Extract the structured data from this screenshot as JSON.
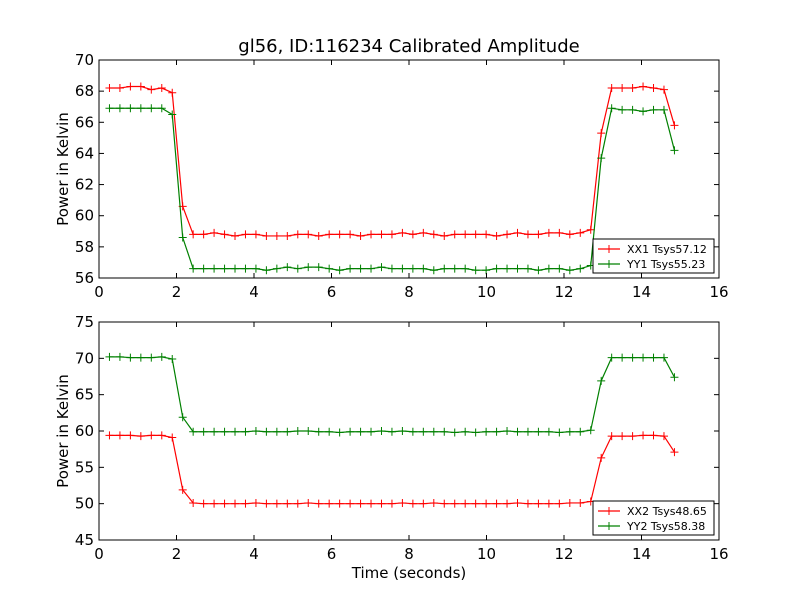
{
  "chart_data": [
    {
      "type": "line",
      "title": "gl56, ID:116234 Calibrated Amplitude",
      "xlabel": "",
      "ylabel": "Power in Kelvin",
      "xlim": [
        0,
        16
      ],
      "ylim": [
        56,
        70
      ],
      "xticks": [
        0,
        2,
        4,
        6,
        8,
        10,
        12,
        14,
        16
      ],
      "yticks": [
        56,
        58,
        60,
        62,
        64,
        66,
        68,
        70
      ],
      "grid": false,
      "legend_position": "lower-right",
      "series": [
        {
          "name": "XX1 Tsys57.12",
          "color": "#ff0000",
          "x": [
            0.27,
            0.54,
            0.81,
            1.08,
            1.35,
            1.62,
            1.89,
            2.16,
            2.43,
            2.7,
            2.97,
            3.24,
            3.51,
            3.78,
            4.05,
            4.32,
            4.59,
            4.86,
            5.13,
            5.4,
            5.67,
            5.94,
            6.21,
            6.48,
            6.75,
            7.02,
            7.29,
            7.56,
            7.83,
            8.1,
            8.37,
            8.64,
            8.91,
            9.18,
            9.45,
            9.72,
            9.99,
            10.26,
            10.53,
            10.8,
            11.07,
            11.34,
            11.61,
            11.88,
            12.15,
            12.42,
            12.69,
            12.96,
            13.23,
            13.5,
            13.77,
            14.04,
            14.31,
            14.58,
            14.85
          ],
          "y": [
            68.2,
            68.2,
            68.3,
            68.3,
            68.1,
            68.2,
            67.9,
            60.6,
            58.8,
            58.8,
            58.9,
            58.8,
            58.7,
            58.8,
            58.8,
            58.7,
            58.7,
            58.7,
            58.8,
            58.8,
            58.7,
            58.8,
            58.8,
            58.8,
            58.7,
            58.8,
            58.8,
            58.8,
            58.9,
            58.8,
            58.9,
            58.8,
            58.7,
            58.8,
            58.8,
            58.8,
            58.8,
            58.7,
            58.8,
            58.9,
            58.8,
            58.8,
            58.9,
            58.9,
            58.8,
            58.9,
            59.1,
            65.3,
            68.2,
            68.2,
            68.2,
            68.3,
            68.2,
            68.1,
            65.8
          ]
        },
        {
          "name": "YY1 Tsys55.23",
          "color": "#008000",
          "x": [
            0.27,
            0.54,
            0.81,
            1.08,
            1.35,
            1.62,
            1.89,
            2.16,
            2.43,
            2.7,
            2.97,
            3.24,
            3.51,
            3.78,
            4.05,
            4.32,
            4.59,
            4.86,
            5.13,
            5.4,
            5.67,
            5.94,
            6.21,
            6.48,
            6.75,
            7.02,
            7.29,
            7.56,
            7.83,
            8.1,
            8.37,
            8.64,
            8.91,
            9.18,
            9.45,
            9.72,
            9.99,
            10.26,
            10.53,
            10.8,
            11.07,
            11.34,
            11.61,
            11.88,
            12.15,
            12.42,
            12.69,
            12.96,
            13.23,
            13.5,
            13.77,
            14.04,
            14.31,
            14.58,
            14.85
          ],
          "y": [
            66.9,
            66.9,
            66.9,
            66.9,
            66.9,
            66.9,
            66.5,
            58.6,
            56.6,
            56.6,
            56.6,
            56.6,
            56.6,
            56.6,
            56.6,
            56.5,
            56.6,
            56.7,
            56.6,
            56.7,
            56.7,
            56.6,
            56.5,
            56.6,
            56.6,
            56.6,
            56.7,
            56.6,
            56.6,
            56.6,
            56.6,
            56.5,
            56.6,
            56.6,
            56.6,
            56.5,
            56.5,
            56.6,
            56.6,
            56.6,
            56.6,
            56.5,
            56.6,
            56.6,
            56.5,
            56.6,
            56.8,
            63.7,
            66.9,
            66.8,
            66.8,
            66.7,
            66.8,
            66.8,
            64.2
          ]
        }
      ]
    },
    {
      "type": "line",
      "title": "",
      "xlabel": "Time (seconds)",
      "ylabel": "Power in Kelvin",
      "xlim": [
        0,
        16
      ],
      "ylim": [
        45,
        75
      ],
      "xticks": [
        0,
        2,
        4,
        6,
        8,
        10,
        12,
        14,
        16
      ],
      "yticks": [
        45,
        50,
        55,
        60,
        65,
        70,
        75
      ],
      "grid": false,
      "legend_position": "lower-right",
      "series": [
        {
          "name": "XX2 Tsys48.65",
          "color": "#ff0000",
          "x": [
            0.27,
            0.54,
            0.81,
            1.08,
            1.35,
            1.62,
            1.89,
            2.16,
            2.43,
            2.7,
            2.97,
            3.24,
            3.51,
            3.78,
            4.05,
            4.32,
            4.59,
            4.86,
            5.13,
            5.4,
            5.67,
            5.94,
            6.21,
            6.48,
            6.75,
            7.02,
            7.29,
            7.56,
            7.83,
            8.1,
            8.37,
            8.64,
            8.91,
            9.18,
            9.45,
            9.72,
            9.99,
            10.26,
            10.53,
            10.8,
            11.07,
            11.34,
            11.61,
            11.88,
            12.15,
            12.42,
            12.69,
            12.96,
            13.23,
            13.5,
            13.77,
            14.04,
            14.31,
            14.58,
            14.85
          ],
          "y": [
            59.4,
            59.4,
            59.4,
            59.3,
            59.4,
            59.4,
            59.1,
            51.9,
            50.1,
            50.0,
            50.0,
            50.0,
            50.0,
            50.0,
            50.1,
            50.0,
            50.0,
            50.0,
            50.0,
            50.1,
            50.0,
            50.0,
            50.0,
            50.0,
            50.0,
            50.0,
            50.0,
            50.0,
            50.1,
            50.0,
            50.0,
            50.1,
            50.0,
            50.0,
            50.0,
            50.0,
            50.0,
            50.0,
            50.0,
            50.1,
            50.0,
            50.0,
            50.0,
            50.0,
            50.1,
            50.1,
            50.3,
            56.3,
            59.3,
            59.3,
            59.3,
            59.4,
            59.4,
            59.3,
            57.1
          ]
        },
        {
          "name": "YY2 Tsys58.38",
          "color": "#008000",
          "x": [
            0.27,
            0.54,
            0.81,
            1.08,
            1.35,
            1.62,
            1.89,
            2.16,
            2.43,
            2.7,
            2.97,
            3.24,
            3.51,
            3.78,
            4.05,
            4.32,
            4.59,
            4.86,
            5.13,
            5.4,
            5.67,
            5.94,
            6.21,
            6.48,
            6.75,
            7.02,
            7.29,
            7.56,
            7.83,
            8.1,
            8.37,
            8.64,
            8.91,
            9.18,
            9.45,
            9.72,
            9.99,
            10.26,
            10.53,
            10.8,
            11.07,
            11.34,
            11.61,
            11.88,
            12.15,
            12.42,
            12.69,
            12.96,
            13.23,
            13.5,
            13.77,
            14.04,
            14.31,
            14.58,
            14.85
          ],
          "y": [
            70.2,
            70.2,
            70.1,
            70.1,
            70.1,
            70.2,
            69.9,
            61.9,
            59.9,
            59.9,
            59.9,
            59.9,
            59.9,
            59.9,
            60.0,
            59.9,
            59.9,
            59.9,
            60.0,
            60.0,
            59.9,
            59.9,
            59.8,
            59.9,
            59.9,
            59.9,
            60.0,
            59.9,
            60.0,
            59.9,
            59.9,
            59.9,
            59.9,
            59.8,
            59.9,
            59.8,
            59.9,
            59.9,
            60.0,
            59.9,
            59.9,
            59.9,
            59.9,
            59.8,
            59.9,
            59.9,
            60.1,
            66.9,
            70.1,
            70.1,
            70.1,
            70.1,
            70.1,
            70.1,
            67.4
          ]
        }
      ]
    }
  ]
}
